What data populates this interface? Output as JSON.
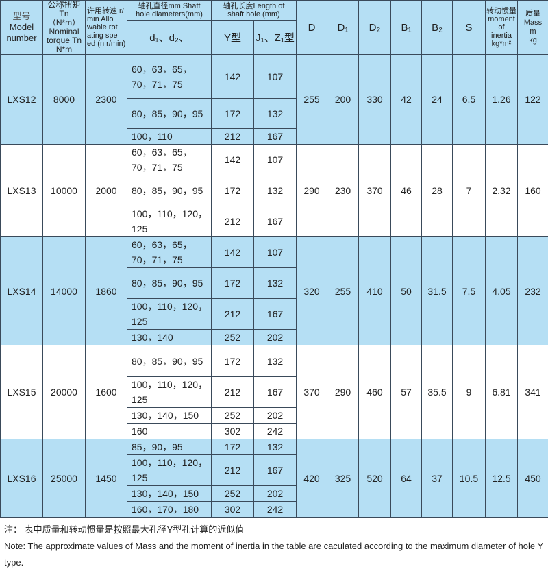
{
  "header": {
    "model": [
      "型号",
      "Model",
      "number"
    ],
    "torque": [
      "公称扭矩",
      "Tn（N*m）",
      "Nominal",
      "torque Tn",
      "N*m"
    ],
    "speed": [
      "许用转速 r/",
      "min Allo",
      "wable rot",
      "ating spe",
      "ed (n r/min)"
    ],
    "shaft_dia": [
      "轴孔直径mm Shaft",
      "hole diameters(mm)"
    ],
    "shaft_len": [
      "轴孔长度Length of",
      "shaft hole (mm)"
    ],
    "d_col": "d₁、d₂、",
    "y_col": "Y型",
    "jz_col": "J₁、Z₁型",
    "D": "D",
    "D1": "D₁",
    "D2": "D₂",
    "B1": "B₁",
    "B2": "B₂",
    "S": "S",
    "inertia": [
      "转动惯量",
      "moment",
      "of",
      "inertia",
      "kg*m²"
    ],
    "mass": [
      "质量",
      "Mass",
      "m",
      "kg"
    ]
  },
  "colors": {
    "row_blue": "#b5dff4",
    "row_white": "#ffffff"
  },
  "models": [
    {
      "model": "LXS12",
      "torque": "8000",
      "speed": "2300",
      "D": "255",
      "D1": "200",
      "D2": "330",
      "B1": "42",
      "B2": "24",
      "S": "6.5",
      "inertia": "1.26",
      "mass": "122",
      "color": "blue",
      "holes": [
        {
          "d": "60，63，65，70，71，75",
          "y": "142",
          "jz": "107"
        },
        {
          "d": "80，85，90，95",
          "y": "172",
          "jz": "132"
        },
        {
          "d": "100，110",
          "y": "212",
          "jz": "167"
        }
      ]
    },
    {
      "model": "LXS13",
      "torque": "10000",
      "speed": "2000",
      "D": "290",
      "D1": "230",
      "D2": "370",
      "B1": "46",
      "B2": "28",
      "S": "7",
      "inertia": "2.32",
      "mass": "160",
      "color": "white",
      "holes": [
        {
          "d": "60，63，65，70，71，75",
          "y": "142",
          "jz": "107"
        },
        {
          "d": "80，85，90，95",
          "y": "172",
          "jz": "132"
        },
        {
          "d": "100，110，120，125",
          "y": "212",
          "jz": "167"
        }
      ]
    },
    {
      "model": "LXS14",
      "torque": "14000",
      "speed": "1860",
      "D": "320",
      "D1": "255",
      "D2": "410",
      "B1": "50",
      "B2": "31.5",
      "S": "7.5",
      "inertia": "4.05",
      "mass": "232",
      "color": "blue",
      "holes": [
        {
          "d": "60，63，65，70，71，75",
          "y": "142",
          "jz": "107"
        },
        {
          "d": "80，85，90，95",
          "y": "172",
          "jz": "132"
        },
        {
          "d": "100，110，120，125",
          "y": "212",
          "jz": "167"
        },
        {
          "d": "130，140",
          "y": "252",
          "jz": "202"
        }
      ]
    },
    {
      "model": "LXS15",
      "torque": "20000",
      "speed": "1600",
      "D": "370",
      "D1": "290",
      "D2": "460",
      "B1": "57",
      "B2": "35.5",
      "S": "9",
      "inertia": "6.81",
      "mass": "341",
      "color": "white",
      "holes": [
        {
          "d": "80，85，90，95",
          "y": "172",
          "jz": "132"
        },
        {
          "d": "100，110，120，125",
          "y": "212",
          "jz": "167"
        },
        {
          "d": "130，140，150",
          "y": "252",
          "jz": "202"
        },
        {
          "d": "160",
          "y": "302",
          "jz": "242"
        }
      ]
    },
    {
      "model": "LXS16",
      "torque": "25000",
      "speed": "1450",
      "D": "420",
      "D1": "325",
      "D2": "520",
      "B1": "64",
      "B2": "37",
      "S": "10.5",
      "inertia": "12.5",
      "mass": "450",
      "color": "blue",
      "holes": [
        {
          "d": "85，90，95",
          "y": "172",
          "jz": "132"
        },
        {
          "d": "100，110，120，125",
          "y": "212",
          "jz": "167"
        },
        {
          "d": "130，140，150",
          "y": "252",
          "jz": "202"
        },
        {
          "d": "160，170，180",
          "y": "302",
          "jz": "242"
        }
      ]
    }
  ],
  "notes": {
    "zh": "注：  表中质量和转动惯量是按照最大孔径Y型孔计算的近似值",
    "en": "Note: The approximate values of Mass and the moment of inertia in the table are caculated according to the maximum diameter of hole Y type."
  }
}
